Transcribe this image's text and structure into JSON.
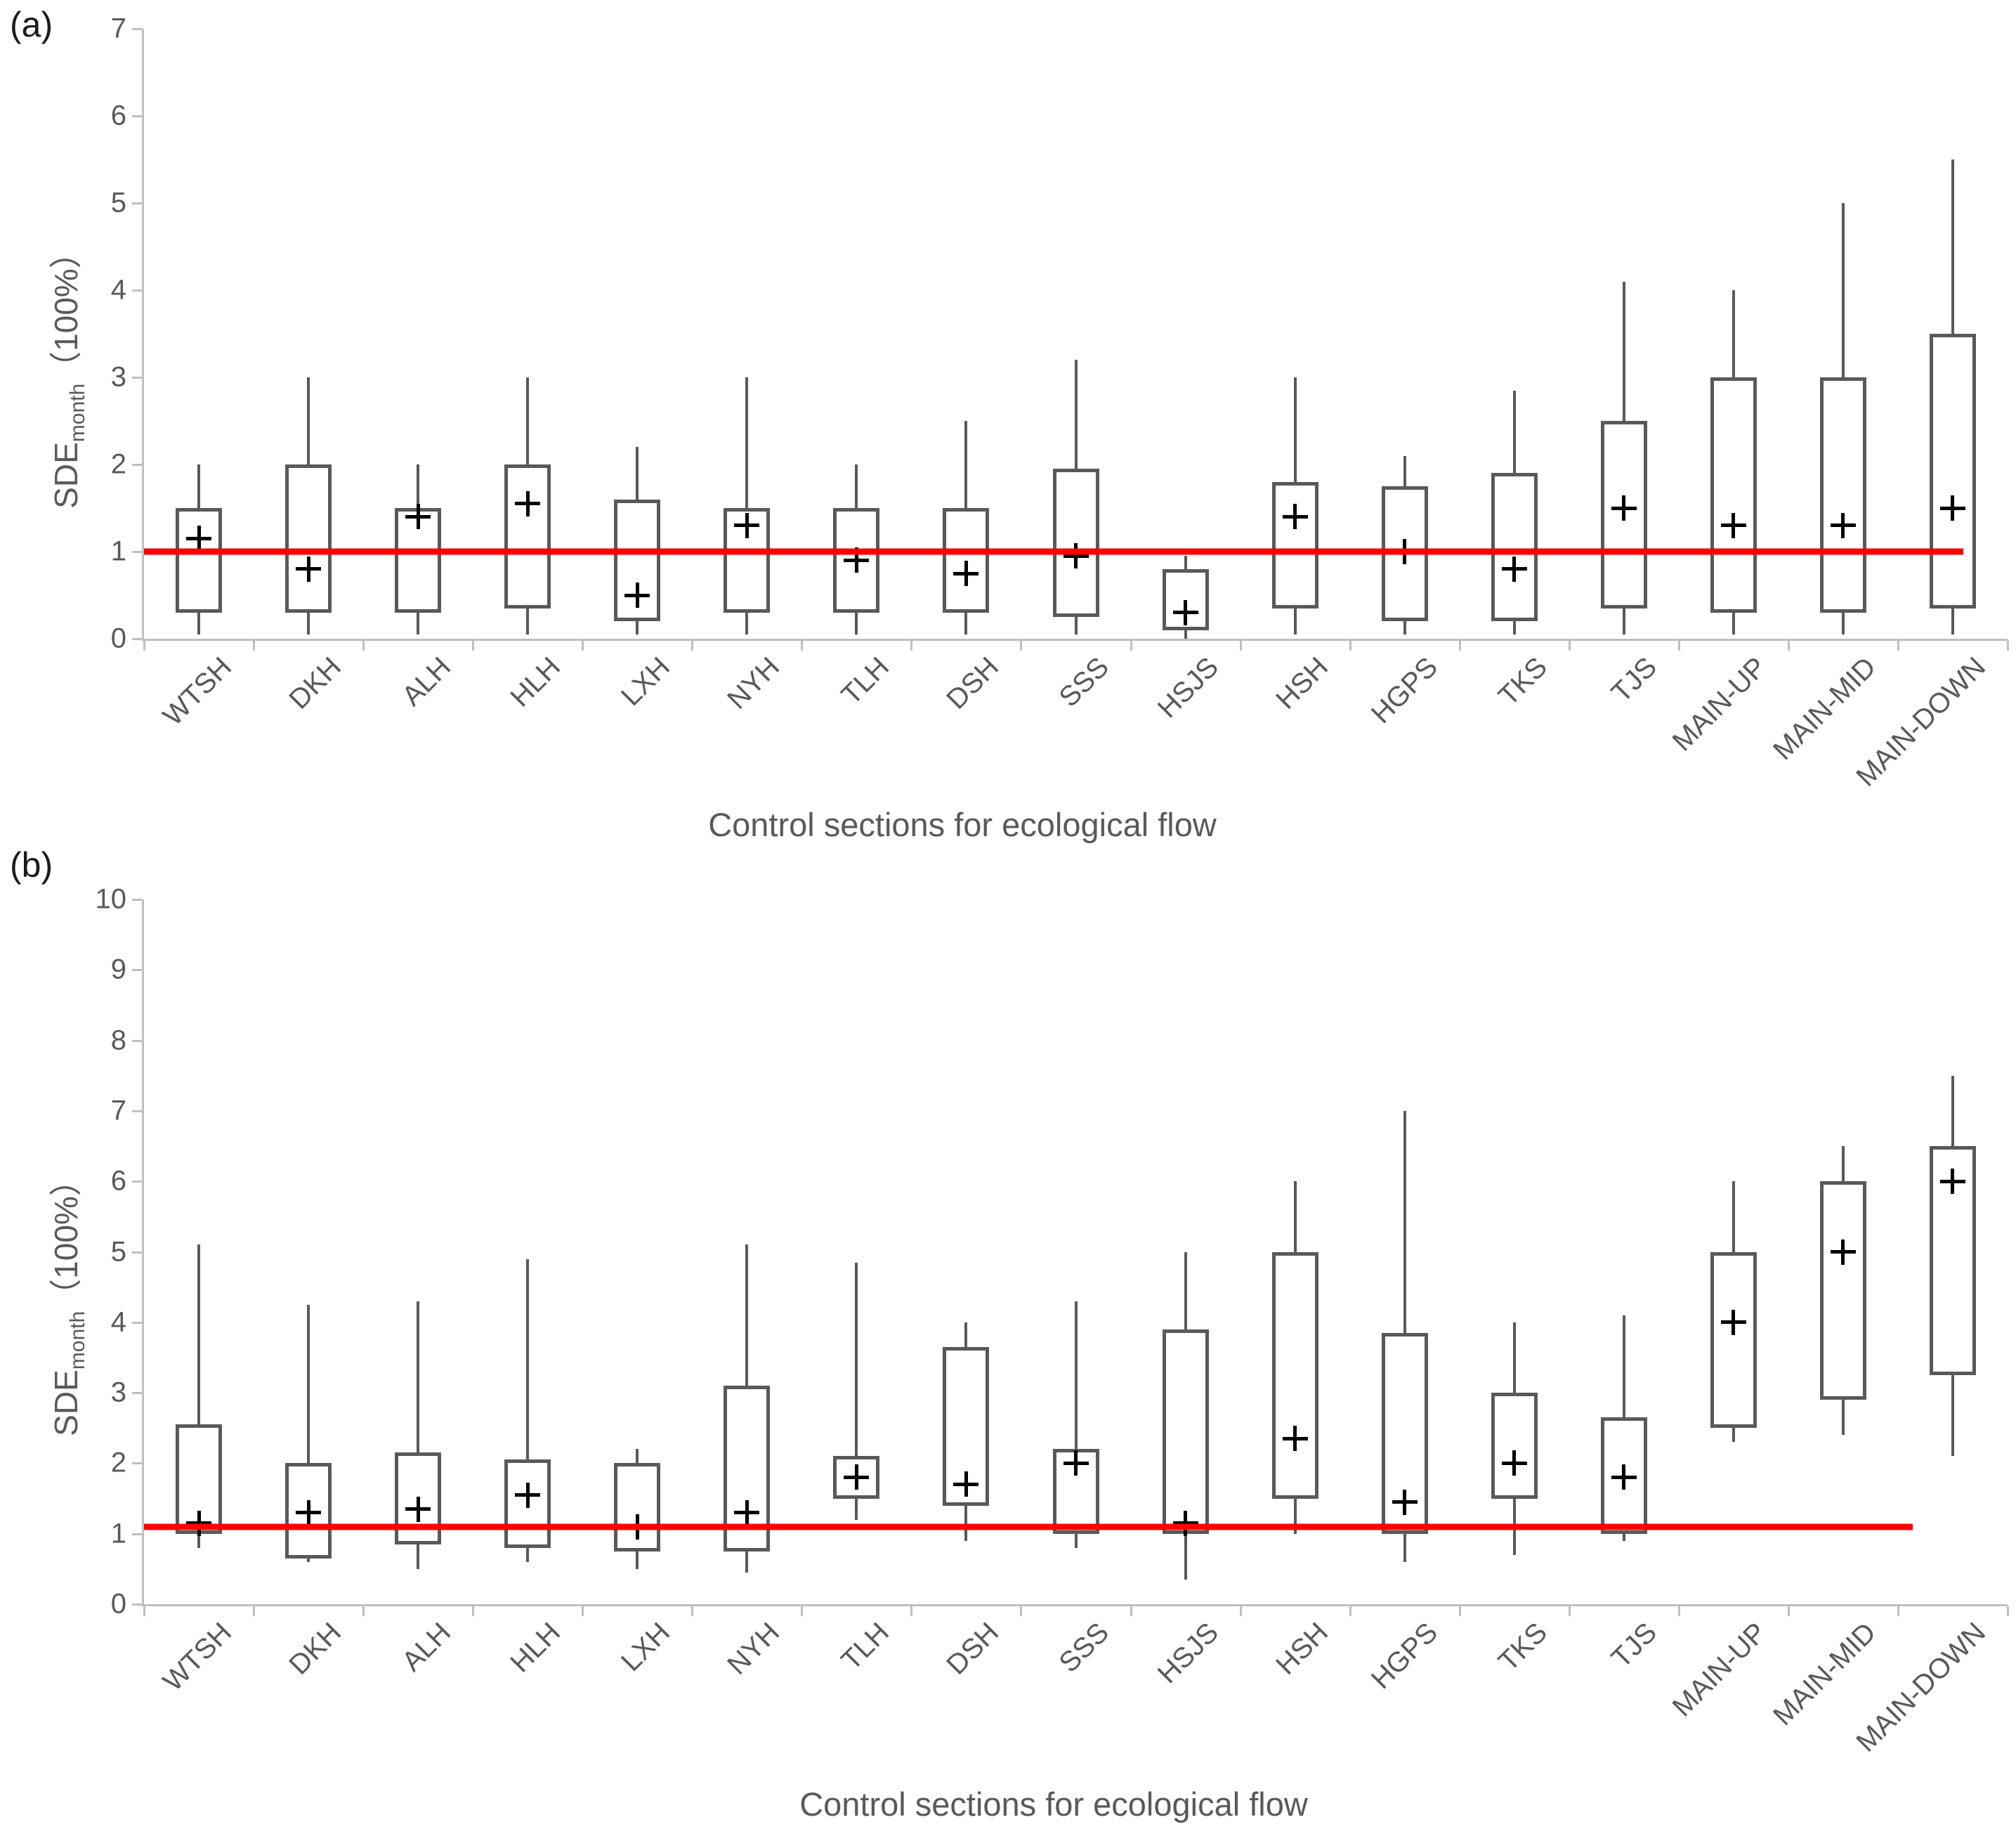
{
  "figure": {
    "panels": [
      {
        "label": "(a)",
        "x_title": "Control sections for ecological flow",
        "y_title_main": "SDE",
        "y_title_sub": "month",
        "y_title_unit": "（100%）"
      },
      {
        "label": "(b)",
        "x_title": "Control sections for ecological flow",
        "y_title_main": "SDE",
        "y_title_sub": "month",
        "y_title_unit": "（100%）"
      }
    ]
  },
  "colors": {
    "axis": "#bfbfbf",
    "box_stroke": "#595959",
    "tick_label": "#595959",
    "mean_marker": "#000000",
    "reference_line": "#ff0000"
  },
  "chart_data": [
    {
      "type": "box",
      "panel": "(a)",
      "title": "",
      "xlabel": "Control sections for ecological flow",
      "ylabel": "SDEmonth（100%）",
      "ylim": [
        0,
        7
      ],
      "ytick_step": 1,
      "grid": false,
      "legend": "none",
      "marker": "plus sign = mean",
      "reference_line_y": 1.0,
      "reference_line_color": "#ff0000",
      "categories": [
        "WTSH",
        "DKH",
        "ALH",
        "HLH",
        "LXH",
        "NYH",
        "TLH",
        "DSH",
        "SSS",
        "HSJS",
        "HSH",
        "HGPS",
        "TKS",
        "TJS",
        "MAIN-UP",
        "MAIN-MID",
        "MAIN-DOWN"
      ],
      "stats": [
        {
          "category": "WTSH",
          "whisker_low": 0.05,
          "q1": 0.3,
          "q3": 1.5,
          "whisker_high": 2.0,
          "mean": 1.15
        },
        {
          "category": "DKH",
          "whisker_low": 0.05,
          "q1": 0.3,
          "q3": 2.0,
          "whisker_high": 3.0,
          "mean": 0.8
        },
        {
          "category": "ALH",
          "whisker_low": 0.05,
          "q1": 0.3,
          "q3": 1.5,
          "whisker_high": 2.0,
          "mean": 1.4
        },
        {
          "category": "HLH",
          "whisker_low": 0.05,
          "q1": 0.35,
          "q3": 2.0,
          "whisker_high": 3.0,
          "mean": 1.55
        },
        {
          "category": "LXH",
          "whisker_low": 0.05,
          "q1": 0.2,
          "q3": 1.6,
          "whisker_high": 2.2,
          "mean": 0.5
        },
        {
          "category": "NYH",
          "whisker_low": 0.05,
          "q1": 0.3,
          "q3": 1.5,
          "whisker_high": 3.0,
          "mean": 1.3
        },
        {
          "category": "TLH",
          "whisker_low": 0.05,
          "q1": 0.3,
          "q3": 1.5,
          "whisker_high": 2.0,
          "mean": 0.9
        },
        {
          "category": "DSH",
          "whisker_low": 0.05,
          "q1": 0.3,
          "q3": 1.5,
          "whisker_high": 2.5,
          "mean": 0.75
        },
        {
          "category": "SSS",
          "whisker_low": 0.05,
          "q1": 0.25,
          "q3": 1.95,
          "whisker_high": 3.2,
          "mean": 0.95
        },
        {
          "category": "HSJS",
          "whisker_low": 0.0,
          "q1": 0.1,
          "q3": 0.8,
          "whisker_high": 0.95,
          "mean": 0.3
        },
        {
          "category": "HSH",
          "whisker_low": 0.05,
          "q1": 0.35,
          "q3": 1.8,
          "whisker_high": 3.0,
          "mean": 1.4
        },
        {
          "category": "HGPS",
          "whisker_low": 0.05,
          "q1": 0.2,
          "q3": 1.75,
          "whisker_high": 2.1,
          "mean": 1.0
        },
        {
          "category": "TKS",
          "whisker_low": 0.05,
          "q1": 0.2,
          "q3": 1.9,
          "whisker_high": 2.85,
          "mean": 0.8
        },
        {
          "category": "TJS",
          "whisker_low": 0.05,
          "q1": 0.35,
          "q3": 2.5,
          "whisker_high": 4.1,
          "mean": 1.5
        },
        {
          "category": "MAIN-UP",
          "whisker_low": 0.05,
          "q1": 0.3,
          "q3": 3.0,
          "whisker_high": 4.0,
          "mean": 1.3
        },
        {
          "category": "MAIN-MID",
          "whisker_low": 0.05,
          "q1": 0.3,
          "q3": 3.0,
          "whisker_high": 5.0,
          "mean": 1.3
        },
        {
          "category": "MAIN-DOWN",
          "whisker_low": 0.05,
          "q1": 0.35,
          "q3": 3.5,
          "whisker_high": 5.5,
          "mean": 1.5
        }
      ]
    },
    {
      "type": "box",
      "panel": "(b)",
      "title": "",
      "xlabel": "Control sections for ecological flow",
      "ylabel": "SDEmonth（100%）",
      "ylim": [
        0,
        10
      ],
      "ytick_step": 1,
      "grid": false,
      "legend": "none",
      "marker": "plus sign = mean",
      "reference_line_y": 1.1,
      "reference_line_color": "#ff0000",
      "categories": [
        "WTSH",
        "DKH",
        "ALH",
        "HLH",
        "LXH",
        "NYH",
        "TLH",
        "DSH",
        "SSS",
        "HSJS",
        "HSH",
        "HGPS",
        "TKS",
        "TJS",
        "MAIN-UP",
        "MAIN-MID",
        "MAIN-DOWN"
      ],
      "stats": [
        {
          "category": "WTSH",
          "whisker_low": 0.8,
          "q1": 1.0,
          "q3": 2.55,
          "whisker_high": 5.1,
          "mean": 1.15
        },
        {
          "category": "DKH",
          "whisker_low": 0.6,
          "q1": 0.65,
          "q3": 2.0,
          "whisker_high": 4.25,
          "mean": 1.3
        },
        {
          "category": "ALH",
          "whisker_low": 0.5,
          "q1": 0.85,
          "q3": 2.15,
          "whisker_high": 4.3,
          "mean": 1.35
        },
        {
          "category": "HLH",
          "whisker_low": 0.6,
          "q1": 0.8,
          "q3": 2.05,
          "whisker_high": 4.9,
          "mean": 1.55
        },
        {
          "category": "LXH",
          "whisker_low": 0.5,
          "q1": 0.75,
          "q3": 2.0,
          "whisker_high": 2.2,
          "mean": 1.1
        },
        {
          "category": "NYH",
          "whisker_low": 0.45,
          "q1": 0.75,
          "q3": 3.1,
          "whisker_high": 5.1,
          "mean": 1.3
        },
        {
          "category": "TLH",
          "whisker_low": 1.2,
          "q1": 1.5,
          "q3": 2.1,
          "whisker_high": 4.85,
          "mean": 1.8
        },
        {
          "category": "DSH",
          "whisker_low": 0.9,
          "q1": 1.4,
          "q3": 3.65,
          "whisker_high": 4.0,
          "mean": 1.7
        },
        {
          "category": "SSS",
          "whisker_low": 0.8,
          "q1": 1.0,
          "q3": 2.2,
          "whisker_high": 4.3,
          "mean": 2.0
        },
        {
          "category": "HSJS",
          "whisker_low": 0.35,
          "q1": 1.0,
          "q3": 3.9,
          "whisker_high": 5.0,
          "mean": 1.15
        },
        {
          "category": "HSH",
          "whisker_low": 1.0,
          "q1": 1.5,
          "q3": 5.0,
          "whisker_high": 6.0,
          "mean": 2.35
        },
        {
          "category": "HGPS",
          "whisker_low": 0.6,
          "q1": 1.0,
          "q3": 3.85,
          "whisker_high": 7.0,
          "mean": 1.45
        },
        {
          "category": "TKS",
          "whisker_low": 0.7,
          "q1": 1.5,
          "q3": 3.0,
          "whisker_high": 4.0,
          "mean": 2.0
        },
        {
          "category": "TJS",
          "whisker_low": 0.9,
          "q1": 1.0,
          "q3": 2.65,
          "whisker_high": 4.1,
          "mean": 1.8
        },
        {
          "category": "MAIN-UP",
          "whisker_low": 2.3,
          "q1": 2.5,
          "q3": 5.0,
          "whisker_high": 6.0,
          "mean": 4.0
        },
        {
          "category": "MAIN-MID",
          "whisker_low": 2.4,
          "q1": 2.9,
          "q3": 6.0,
          "whisker_high": 6.5,
          "mean": 5.0
        },
        {
          "category": "MAIN-DOWN",
          "whisker_low": 2.1,
          "q1": 3.25,
          "q3": 6.5,
          "whisker_high": 7.5,
          "mean": 6.0
        }
      ]
    }
  ]
}
